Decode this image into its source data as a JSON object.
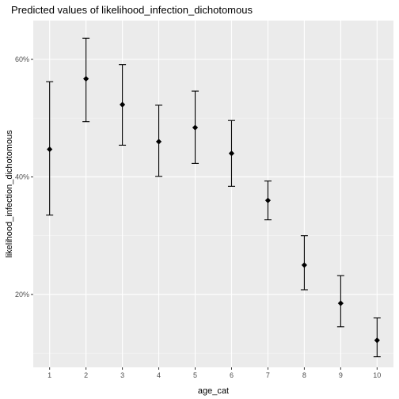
{
  "chart_data": {
    "type": "scatter",
    "title": "Predicted values of likelihood_infection_dichotomous",
    "xlabel": "age_cat",
    "ylabel": "likelihood_infection_dichotomous",
    "x": [
      1,
      2,
      3,
      4,
      5,
      6,
      7,
      8,
      9,
      10
    ],
    "x_tick_labels": [
      "1",
      "2",
      "3",
      "4",
      "5",
      "6",
      "7",
      "8",
      "9",
      "10"
    ],
    "y": [
      0.447,
      0.567,
      0.523,
      0.46,
      0.484,
      0.44,
      0.36,
      0.25,
      0.185,
      0.122
    ],
    "y_low": [
      0.335,
      0.494,
      0.454,
      0.401,
      0.423,
      0.384,
      0.327,
      0.208,
      0.145,
      0.094
    ],
    "y_high": [
      0.562,
      0.636,
      0.591,
      0.522,
      0.546,
      0.496,
      0.393,
      0.3,
      0.232,
      0.16
    ],
    "y_ticks": [
      0.2,
      0.4,
      0.6
    ],
    "y_tick_labels": [
      "20%",
      "40%",
      "60%"
    ],
    "xlim": [
      0.55,
      10.45
    ],
    "ylim": [
      0.076,
      0.666
    ],
    "grid": true,
    "colors": {
      "panel": "#ebebeb",
      "grid_major": "#ffffff",
      "grid_minor": "#f5f5f5",
      "marks": "#000000"
    }
  }
}
